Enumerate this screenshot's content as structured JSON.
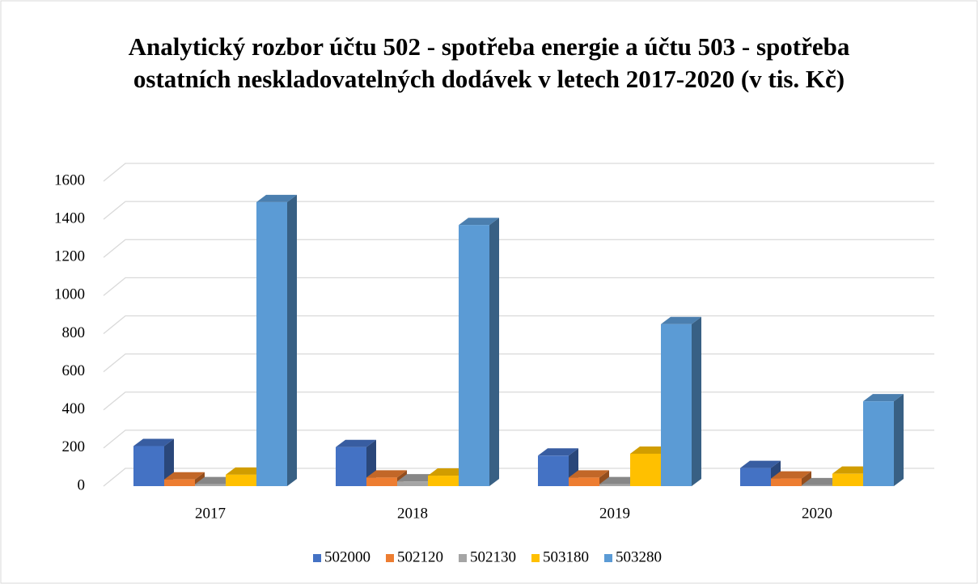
{
  "chart_data": {
    "type": "bar3d",
    "title": "Analytický rozbor účtu 502 - spotřeba energie a účtu 503 - spotřeba ostatních neskladovatelných dodávek v letech 2017-2020 (v tis. Kč)",
    "categories": [
      "2017",
      "2018",
      "2019",
      "2020"
    ],
    "series": [
      {
        "name": "502000",
        "color": "#4472c4",
        "values": [
          210,
          205,
          160,
          95
        ]
      },
      {
        "name": "502120",
        "color": "#ed7d31",
        "values": [
          35,
          45,
          45,
          40
        ]
      },
      {
        "name": "502130",
        "color": "#a5a5a5",
        "values": [
          10,
          25,
          10,
          5
        ]
      },
      {
        "name": "503180",
        "color": "#ffc000",
        "values": [
          60,
          55,
          170,
          65
        ]
      },
      {
        "name": "503280",
        "color": "#5b9bd5",
        "values": [
          1490,
          1370,
          850,
          445
        ]
      }
    ],
    "ylim": [
      0,
      1600
    ],
    "yticks": [
      0,
      200,
      400,
      600,
      800,
      1000,
      1200,
      1400,
      1600
    ],
    "grid": true,
    "legend": "bottom"
  }
}
